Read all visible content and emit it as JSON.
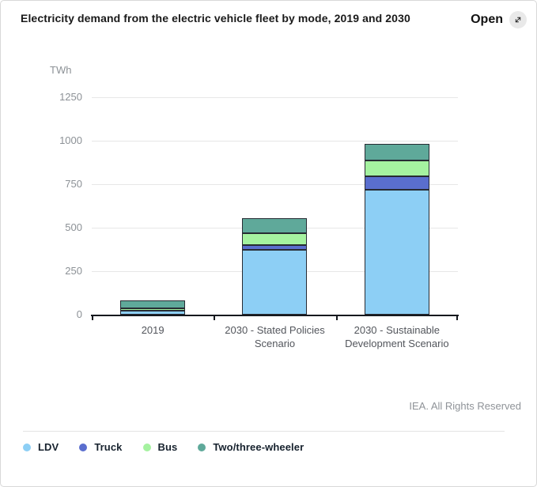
{
  "header": {
    "title": "Electricity demand from the electric vehicle fleet by mode, 2019 and 2030",
    "open_label": "Open"
  },
  "chart_data": {
    "type": "bar",
    "stacked": true,
    "title": "Electricity demand from the electric vehicle fleet by mode, 2019 and 2030",
    "unit": "TWh",
    "categories": [
      "2019",
      "2030 - Stated Policies Scenario",
      "2030 - Sustainable Development Scenario"
    ],
    "series": [
      {
        "name": "LDV",
        "color": "#8DCFF5",
        "values": [
          23,
          375,
          720
        ]
      },
      {
        "name": "Truck",
        "color": "#5A6ECE",
        "values": [
          1,
          25,
          75
        ]
      },
      {
        "name": "Bus",
        "color": "#A5F2A0",
        "values": [
          15,
          70,
          90
        ]
      },
      {
        "name": "Two/three-wheeler",
        "color": "#5FA99A",
        "values": [
          46,
          85,
          95
        ]
      }
    ],
    "xlabel": "",
    "ylabel": "TWh",
    "ylim": [
      0,
      1300
    ],
    "yticks": [
      0,
      250,
      500,
      750,
      1000,
      1250
    ],
    "grid": true,
    "legend_position": "bottom",
    "bar_border_color": "#272b33",
    "axis_color": "#15181d",
    "gridline_color": "#e7e7e7"
  },
  "footer": {
    "attribution": "IEA. All Rights Reserved"
  }
}
